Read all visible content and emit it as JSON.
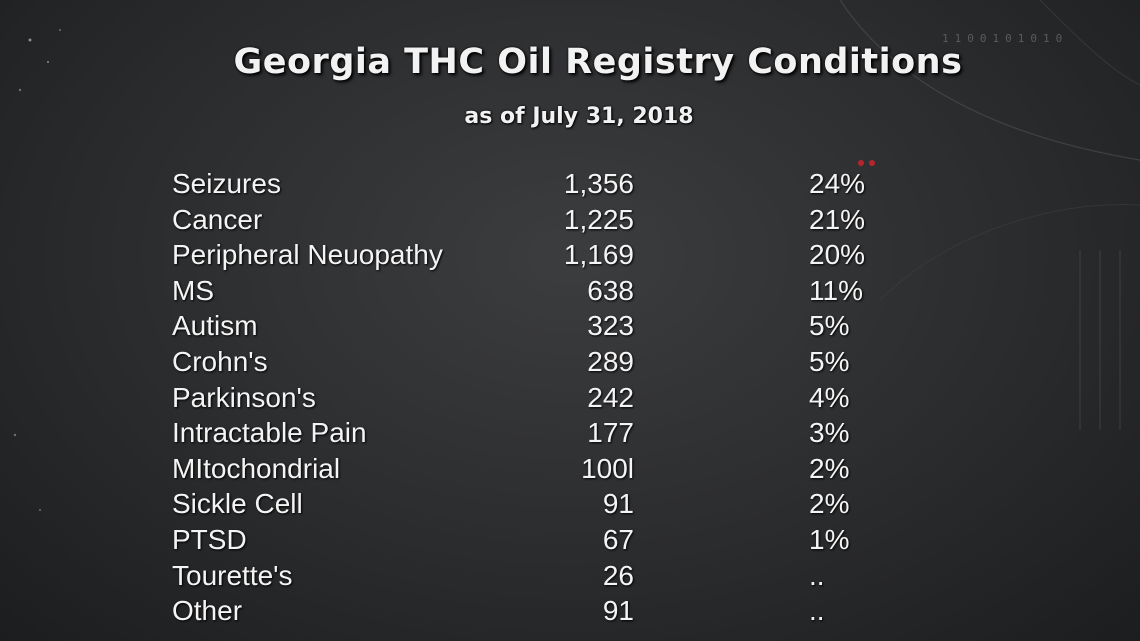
{
  "header": {
    "title": "Georgia THC Oil Registry Conditions",
    "subtitle": "as of July 31, 2018",
    "binary_text": "1100101010"
  },
  "colors": {
    "background": "#2b2c2e",
    "text": "#f4f4f4",
    "accent_dots": "#b3262c"
  },
  "chart_data": {
    "type": "table",
    "title": "Georgia THC Oil Registry Conditions",
    "subtitle": "as of July 31, 2018",
    "columns": [
      "",
      "",
      ""
    ],
    "rows": [
      {
        "label": "Seizures",
        "count": "1,356",
        "percent": "24%"
      },
      {
        "label": "Cancer",
        "count": "1,225",
        "percent": "21%"
      },
      {
        "label": "Peripheral Neuopathy",
        "count": "1,169",
        "percent": "20%"
      },
      {
        "label": "MS",
        "count": "638",
        "percent": "11%"
      },
      {
        "label": "Autism",
        "count": "323",
        "percent": "5%"
      },
      {
        "label": "Crohn's",
        "count": "289",
        "percent": "5%"
      },
      {
        "label": "Parkinson's",
        "count": "242",
        "percent": "4%"
      },
      {
        "label": "Intractable Pain",
        "count": "177",
        "percent": "3%"
      },
      {
        "label": "MItochondrial",
        "count": "100l",
        "percent": "2%"
      },
      {
        "label": "Sickle Cell",
        "count": "91",
        "percent": "2%"
      },
      {
        "label": "PTSD",
        "count": "67",
        "percent": "1%"
      },
      {
        "label": "Tourette's",
        "count": "26",
        "percent": ".."
      },
      {
        "label": "Other",
        "count": "91",
        "percent": ".."
      }
    ]
  }
}
